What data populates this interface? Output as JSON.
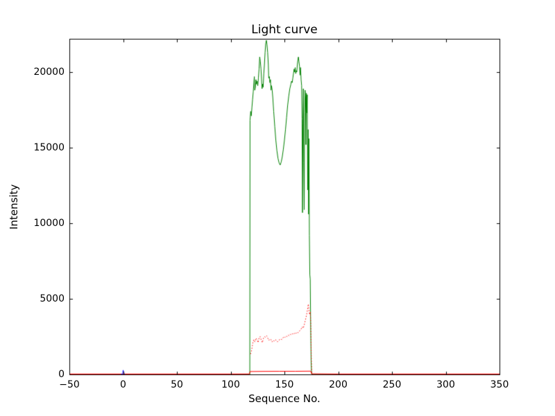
{
  "figure": {
    "background": "#ffffff",
    "frame_color": "#000000",
    "tick_color": "#000000"
  },
  "chart_data": {
    "type": "line",
    "title": "Light curve",
    "xlabel": "Sequence No.",
    "ylabel": "Intensity",
    "xlim": [
      -50,
      350
    ],
    "ylim": [
      0,
      22200
    ],
    "grid": false,
    "legend": null,
    "x_ticks": {
      "values": [
        -50,
        0,
        50,
        100,
        150,
        200,
        250,
        300,
        350
      ],
      "labels": [
        "−50",
        "0",
        "50",
        "100",
        "150",
        "200",
        "250",
        "300",
        "350"
      ]
    },
    "y_ticks": {
      "values": [
        0,
        5000,
        10000,
        15000,
        20000
      ],
      "labels": [
        "0",
        "5000",
        "10000",
        "15000",
        "20000"
      ]
    },
    "series": [
      {
        "name": "green-intensity-curve",
        "color": "#008000",
        "style": "solid",
        "width": 1,
        "points": [
          [
            -50,
            0
          ],
          [
            116,
            0
          ],
          [
            117.8,
            0
          ],
          [
            118,
            16800
          ],
          [
            118.6,
            17400
          ],
          [
            119.2,
            17100
          ],
          [
            119.8,
            17700
          ],
          [
            120.4,
            18200
          ],
          [
            121,
            18700
          ],
          [
            121.6,
            19300
          ],
          [
            122,
            19700
          ],
          [
            122.4,
            18800
          ],
          [
            123,
            19000
          ],
          [
            123.5,
            19500
          ],
          [
            124,
            19200
          ],
          [
            124.6,
            19400
          ],
          [
            125.2,
            19100
          ],
          [
            125.8,
            19600
          ],
          [
            126.4,
            20200
          ],
          [
            127,
            21000
          ],
          [
            127.6,
            20700
          ],
          [
            128.2,
            20200
          ],
          [
            128.8,
            19400
          ],
          [
            129.2,
            18900
          ],
          [
            129.7,
            19200
          ],
          [
            130.2,
            19000
          ],
          [
            130.8,
            19900
          ],
          [
            131.4,
            20500
          ],
          [
            132,
            21300
          ],
          [
            132.6,
            21900
          ],
          [
            133.2,
            22100
          ],
          [
            133.8,
            21800
          ],
          [
            134.4,
            21300
          ],
          [
            135,
            20500
          ],
          [
            135.4,
            19600
          ],
          [
            136,
            19700
          ],
          [
            136.5,
            19300
          ],
          [
            137,
            19500
          ],
          [
            137.5,
            18800
          ],
          [
            138,
            19100
          ],
          [
            138.6,
            18800
          ],
          [
            139.2,
            18300
          ],
          [
            140,
            17400
          ],
          [
            141,
            16400
          ],
          [
            142,
            15500
          ],
          [
            143,
            14800
          ],
          [
            144,
            14300
          ],
          [
            145,
            14000
          ],
          [
            146,
            13850
          ],
          [
            147,
            14050
          ],
          [
            148,
            14400
          ],
          [
            149,
            14900
          ],
          [
            150,
            15500
          ],
          [
            151,
            16200
          ],
          [
            152,
            17000
          ],
          [
            153,
            17800
          ],
          [
            154,
            18400
          ],
          [
            155,
            18900
          ],
          [
            156,
            19200
          ],
          [
            156.6,
            19400
          ],
          [
            157.2,
            19300
          ],
          [
            157.8,
            19600
          ],
          [
            158.4,
            19900
          ],
          [
            159,
            20200
          ],
          [
            159.5,
            20000
          ],
          [
            160,
            20300
          ],
          [
            160.5,
            19900
          ],
          [
            161,
            20100
          ],
          [
            161.5,
            20000
          ],
          [
            162,
            20500
          ],
          [
            162.5,
            20800
          ],
          [
            163,
            21000
          ],
          [
            163.5,
            20700
          ],
          [
            164,
            20400
          ],
          [
            164.5,
            19800
          ],
          [
            165,
            20300
          ],
          [
            165.5,
            19500
          ],
          [
            166,
            19100
          ],
          [
            166.4,
            16900
          ],
          [
            166.8,
            10700
          ],
          [
            167.2,
            16600
          ],
          [
            167.6,
            18900
          ],
          [
            168,
            14000
          ],
          [
            168.4,
            10900
          ],
          [
            168.8,
            17300
          ],
          [
            169.2,
            18800
          ],
          [
            169.6,
            18400
          ],
          [
            170,
            15200
          ],
          [
            170.4,
            18600
          ],
          [
            170.8,
            17300
          ],
          [
            171.2,
            18500
          ],
          [
            171.6,
            12200
          ],
          [
            172,
            16200
          ],
          [
            172.4,
            10600
          ],
          [
            172.8,
            15600
          ],
          [
            173.2,
            9200
          ],
          [
            173.6,
            6600
          ],
          [
            174,
            6300
          ],
          [
            174.4,
            3200
          ],
          [
            174.8,
            900
          ],
          [
            175.2,
            150
          ],
          [
            175.6,
            0
          ],
          [
            350,
            0
          ]
        ]
      },
      {
        "name": "red-dotted-curve",
        "color": "#ff0000",
        "style": "dotted",
        "width": 1,
        "points": [
          [
            118.5,
            1350
          ],
          [
            119.5,
            1600
          ],
          [
            120.5,
            2050
          ],
          [
            121.5,
            2300
          ],
          [
            122.5,
            2150
          ],
          [
            123.5,
            2400
          ],
          [
            124.5,
            2300
          ],
          [
            125.5,
            2100
          ],
          [
            126.5,
            2450
          ],
          [
            127.5,
            2500
          ],
          [
            128.5,
            2250
          ],
          [
            129.5,
            2100
          ],
          [
            130.5,
            2400
          ],
          [
            131.5,
            2500
          ],
          [
            132.5,
            2450
          ],
          [
            133.5,
            2550
          ],
          [
            134.5,
            2400
          ],
          [
            135.5,
            2250
          ],
          [
            136.5,
            2350
          ],
          [
            137.5,
            2300
          ],
          [
            138.5,
            2150
          ],
          [
            139.5,
            2250
          ],
          [
            140.5,
            2200
          ],
          [
            141.5,
            2300
          ],
          [
            142.5,
            2250
          ],
          [
            143.5,
            2150
          ],
          [
            144.5,
            2250
          ],
          [
            145.5,
            2300
          ],
          [
            146.5,
            2350
          ],
          [
            147.5,
            2300
          ],
          [
            148.5,
            2400
          ],
          [
            149.5,
            2500
          ],
          [
            150.5,
            2450
          ],
          [
            151.5,
            2550
          ],
          [
            152.5,
            2500
          ],
          [
            153.5,
            2600
          ],
          [
            154.5,
            2550
          ],
          [
            155.5,
            2650
          ],
          [
            156.5,
            2600
          ],
          [
            157.5,
            2700
          ],
          [
            158.5,
            2650
          ],
          [
            159.5,
            2750
          ],
          [
            160.5,
            2700
          ],
          [
            161.5,
            2800
          ],
          [
            162.5,
            2750
          ],
          [
            163.5,
            2850
          ],
          [
            164.5,
            2900
          ],
          [
            165.5,
            3000
          ],
          [
            166.5,
            3150
          ],
          [
            167.5,
            3050
          ],
          [
            168.5,
            3300
          ],
          [
            169.5,
            3600
          ],
          [
            170.5,
            3900
          ],
          [
            171.5,
            4300
          ],
          [
            172.2,
            4650
          ],
          [
            172.8,
            4250
          ],
          [
            173.4,
            3950
          ],
          [
            174,
            4150
          ],
          [
            174.5,
            3400
          ],
          [
            175,
            1200
          ],
          [
            175.4,
            150
          ],
          [
            175.8,
            0
          ]
        ]
      },
      {
        "name": "red-solid-baseline",
        "color": "#ff0000",
        "style": "solid",
        "width": 1,
        "points": [
          [
            -50,
            25
          ],
          [
            100,
            25
          ],
          [
            117.5,
            30
          ],
          [
            118,
            190
          ],
          [
            130,
            200
          ],
          [
            145,
            205
          ],
          [
            160,
            205
          ],
          [
            174.5,
            215
          ],
          [
            175.2,
            40
          ],
          [
            200,
            25
          ],
          [
            350,
            25
          ]
        ]
      },
      {
        "name": "blue-spike",
        "color": "#0000ff",
        "style": "solid",
        "width": 1,
        "points": [
          [
            -2,
            0
          ],
          [
            -0.5,
            30
          ],
          [
            0,
            280
          ],
          [
            0.5,
            150
          ],
          [
            1,
            20
          ],
          [
            1.5,
            0
          ]
        ]
      }
    ]
  }
}
